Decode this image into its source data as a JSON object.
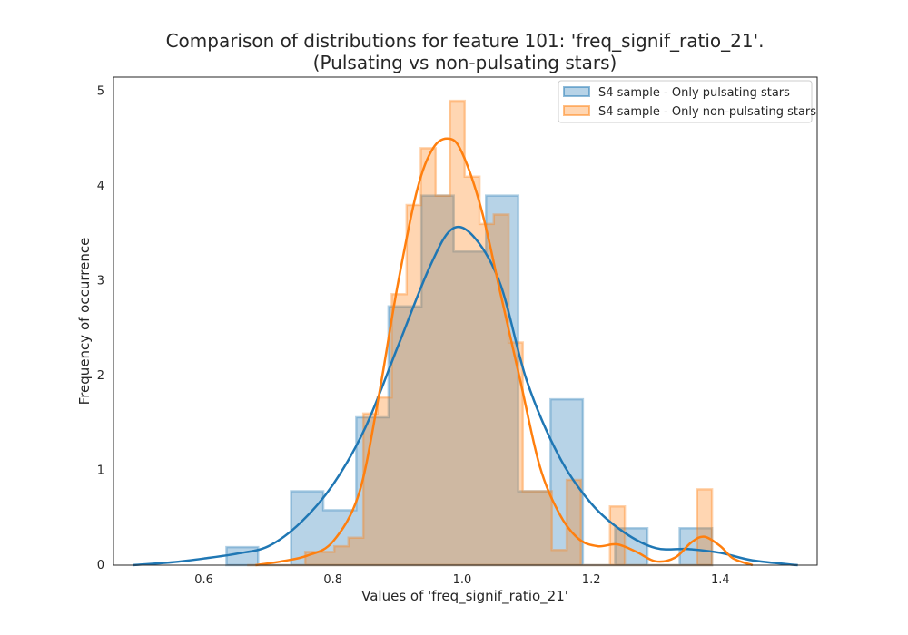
{
  "chart_data": {
    "type": "histogram",
    "title_line1": "Comparison of distributions for feature 101: 'freq_signif_ratio_21'.",
    "title_line2": "(Pulsating vs non-pulsating stars)",
    "xlabel": "Values of 'freq_signif_ratio_21'",
    "ylabel": "Frequency of occurrence",
    "xlim": [
      0.46,
      1.55
    ],
    "ylim": [
      0,
      5.15
    ],
    "xticks": [
      0.6,
      0.8,
      1.0,
      1.2,
      1.4
    ],
    "xtick_labels": [
      "0.6",
      "0.8",
      "1.0",
      "1.2",
      "1.4"
    ],
    "yticks": [
      0,
      1,
      2,
      3,
      4,
      5
    ],
    "ytick_labels": [
      "0",
      "1",
      "2",
      "3",
      "4",
      "5"
    ],
    "grid": false,
    "legend_position": "upper-right",
    "series": [
      {
        "name": "S4 sample - Only pulsating stars",
        "color": "#1f77b4",
        "bins": [
          {
            "x0": 0.635,
            "x1": 0.684,
            "y": 0.19
          },
          {
            "x0": 0.684,
            "x1": 0.735,
            "y": 0.0
          },
          {
            "x0": 0.735,
            "x1": 0.785,
            "y": 0.78
          },
          {
            "x0": 0.785,
            "x1": 0.836,
            "y": 0.58
          },
          {
            "x0": 0.836,
            "x1": 0.886,
            "y": 1.56
          },
          {
            "x0": 0.886,
            "x1": 0.937,
            "y": 2.73
          },
          {
            "x0": 0.937,
            "x1": 0.987,
            "y": 3.9
          },
          {
            "x0": 0.987,
            "x1": 1.037,
            "y": 3.31
          },
          {
            "x0": 1.037,
            "x1": 1.087,
            "y": 3.9
          },
          {
            "x0": 1.087,
            "x1": 1.137,
            "y": 0.78
          },
          {
            "x0": 1.137,
            "x1": 1.187,
            "y": 1.75
          },
          {
            "x0": 1.187,
            "x1": 1.237,
            "y": 0.0
          },
          {
            "x0": 1.237,
            "x1": 1.287,
            "y": 0.39
          },
          {
            "x0": 1.287,
            "x1": 1.337,
            "y": 0.0
          },
          {
            "x0": 1.337,
            "x1": 1.387,
            "y": 0.39
          }
        ],
        "kde": [
          [
            0.49,
            0.0
          ],
          [
            0.55,
            0.03
          ],
          [
            0.6,
            0.07
          ],
          [
            0.65,
            0.12
          ],
          [
            0.7,
            0.2
          ],
          [
            0.75,
            0.45
          ],
          [
            0.8,
            0.85
          ],
          [
            0.85,
            1.45
          ],
          [
            0.9,
            2.3
          ],
          [
            0.95,
            3.15
          ],
          [
            0.985,
            3.55
          ],
          [
            1.02,
            3.45
          ],
          [
            1.06,
            2.95
          ],
          [
            1.1,
            1.95
          ],
          [
            1.15,
            1.15
          ],
          [
            1.2,
            0.65
          ],
          [
            1.25,
            0.35
          ],
          [
            1.3,
            0.18
          ],
          [
            1.35,
            0.17
          ],
          [
            1.4,
            0.13
          ],
          [
            1.45,
            0.05
          ],
          [
            1.52,
            0.0
          ]
        ]
      },
      {
        "name": "S4 sample - Only non-pulsating stars",
        "color": "#ff7f0e",
        "bins": [
          {
            "x0": 0.667,
            "x1": 0.689,
            "y": 0.0
          },
          {
            "x0": 0.689,
            "x1": 0.712,
            "y": 0.0
          },
          {
            "x0": 0.712,
            "x1": 0.734,
            "y": 0.0
          },
          {
            "x0": 0.734,
            "x1": 0.757,
            "y": 0.0
          },
          {
            "x0": 0.757,
            "x1": 0.779,
            "y": 0.14
          },
          {
            "x0": 0.779,
            "x1": 0.802,
            "y": 0.14
          },
          {
            "x0": 0.802,
            "x1": 0.824,
            "y": 0.2
          },
          {
            "x0": 0.824,
            "x1": 0.847,
            "y": 0.29
          },
          {
            "x0": 0.847,
            "x1": 0.869,
            "y": 1.6
          },
          {
            "x0": 0.869,
            "x1": 0.891,
            "y": 1.77
          },
          {
            "x0": 0.891,
            "x1": 0.914,
            "y": 2.86
          },
          {
            "x0": 0.914,
            "x1": 0.936,
            "y": 3.8
          },
          {
            "x0": 0.936,
            "x1": 0.959,
            "y": 4.4
          },
          {
            "x0": 0.959,
            "x1": 0.981,
            "y": 3.9
          },
          {
            "x0": 0.981,
            "x1": 1.004,
            "y": 4.9
          },
          {
            "x0": 1.004,
            "x1": 1.027,
            "y": 4.1
          },
          {
            "x0": 1.027,
            "x1": 1.049,
            "y": 3.6
          },
          {
            "x0": 1.049,
            "x1": 1.072,
            "y": 3.7
          },
          {
            "x0": 1.072,
            "x1": 1.094,
            "y": 2.35
          },
          {
            "x0": 1.094,
            "x1": 1.117,
            "y": 0.78
          },
          {
            "x0": 1.117,
            "x1": 1.139,
            "y": 0.78
          },
          {
            "x0": 1.139,
            "x1": 1.162,
            "y": 0.16
          },
          {
            "x0": 1.162,
            "x1": 1.184,
            "y": 0.9
          },
          {
            "x0": 1.184,
            "x1": 1.207,
            "y": 0.0
          },
          {
            "x0": 1.207,
            "x1": 1.229,
            "y": 0.0
          },
          {
            "x0": 1.229,
            "x1": 1.252,
            "y": 0.62
          },
          {
            "x0": 1.252,
            "x1": 1.274,
            "y": 0.0
          },
          {
            "x0": 1.274,
            "x1": 1.297,
            "y": 0.0
          },
          {
            "x0": 1.297,
            "x1": 1.319,
            "y": 0.0
          },
          {
            "x0": 1.319,
            "x1": 1.342,
            "y": 0.0
          },
          {
            "x0": 1.342,
            "x1": 1.364,
            "y": 0.0
          },
          {
            "x0": 1.364,
            "x1": 1.387,
            "y": 0.8
          }
        ],
        "kde": [
          [
            0.68,
            0.0
          ],
          [
            0.72,
            0.04
          ],
          [
            0.76,
            0.1
          ],
          [
            0.8,
            0.25
          ],
          [
            0.84,
            0.75
          ],
          [
            0.87,
            1.75
          ],
          [
            0.9,
            2.95
          ],
          [
            0.93,
            3.95
          ],
          [
            0.955,
            4.4
          ],
          [
            0.98,
            4.5
          ],
          [
            1.0,
            4.35
          ],
          [
            1.03,
            3.75
          ],
          [
            1.06,
            2.85
          ],
          [
            1.09,
            1.95
          ],
          [
            1.12,
            1.05
          ],
          [
            1.15,
            0.55
          ],
          [
            1.18,
            0.28
          ],
          [
            1.21,
            0.2
          ],
          [
            1.24,
            0.22
          ],
          [
            1.27,
            0.14
          ],
          [
            1.3,
            0.04
          ],
          [
            1.33,
            0.08
          ],
          [
            1.355,
            0.24
          ],
          [
            1.375,
            0.3
          ],
          [
            1.4,
            0.2
          ],
          [
            1.42,
            0.07
          ],
          [
            1.45,
            0.0
          ]
        ]
      }
    ]
  }
}
